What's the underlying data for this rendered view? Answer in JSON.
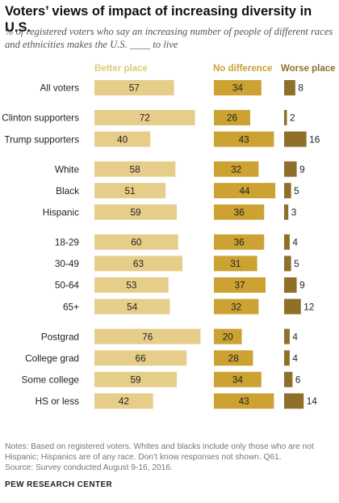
{
  "title": "Voters’ views of impact of increasing diversity in U.S.",
  "subtitle": "% of registered voters who say an increasing number of people of different races and ethnicities makes the U.S. ____ to live",
  "colors": {
    "better": "#e6ce8a",
    "no_difference": "#ccA233",
    "worse": "#8f6f2a",
    "better_header": "#e0c97a",
    "no_difference_header": "#c9a232",
    "worse_header": "#8f6f2a"
  },
  "chart_data": {
    "type": "bar",
    "stacking": "side-by-side groups",
    "series": [
      {
        "name": "Better place",
        "values": [
          57,
          72,
          40,
          58,
          51,
          59,
          60,
          63,
          53,
          54,
          76,
          66,
          59,
          42
        ]
      },
      {
        "name": "No difference",
        "values": [
          34,
          26,
          43,
          32,
          44,
          36,
          36,
          31,
          37,
          32,
          20,
          28,
          34,
          43
        ]
      },
      {
        "name": "Worse place",
        "values": [
          8,
          2,
          16,
          9,
          5,
          3,
          4,
          5,
          9,
          12,
          4,
          4,
          6,
          14
        ]
      }
    ],
    "groups": [
      [
        "All voters"
      ],
      [
        "Clinton supporters",
        "Trump supporters"
      ],
      [
        "White",
        "Black",
        "Hispanic"
      ],
      [
        "18-29",
        "30-49",
        "50-64",
        "65+"
      ],
      [
        "Postgrad",
        "College grad",
        "Some college",
        "HS or less"
      ]
    ],
    "categories": [
      "All voters",
      "Clinton supporters",
      "Trump supporters",
      "White",
      "Black",
      "Hispanic",
      "18-29",
      "30-49",
      "50-64",
      "65+",
      "Postgrad",
      "College grad",
      "Some college",
      "HS or less"
    ]
  },
  "notes": "Notes: Based on registered voters. Whites and blacks include only those who are not Hispanic; Hispanics are of any race. Don’t know responses not shown. Q61.",
  "source": "Source: Survey conducted August 9-16, 2016.",
  "footer": "PEW RESEARCH CENTER"
}
